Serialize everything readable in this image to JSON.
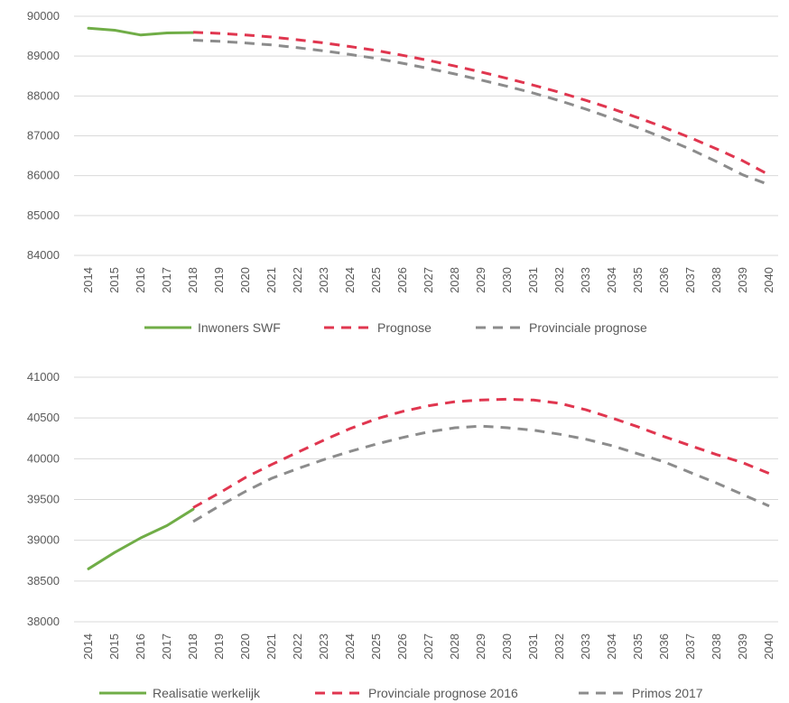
{
  "chart_data": [
    {
      "type": "line",
      "x": [
        "2014",
        "2015",
        "2016",
        "2017",
        "2018",
        "2019",
        "2020",
        "2021",
        "2022",
        "2023",
        "2024",
        "2025",
        "2026",
        "2027",
        "2028",
        "2029",
        "2030",
        "2031",
        "2032",
        "2033",
        "2034",
        "2035",
        "2036",
        "2037",
        "2038",
        "2039",
        "2040"
      ],
      "ylim": [
        84000,
        90000
      ],
      "yticks": [
        90000,
        89000,
        88000,
        87000,
        86000,
        85000,
        84000
      ],
      "grid": true,
      "legend_position": "bottom",
      "series": [
        {
          "name": "Inwoners SWF",
          "color": "#70ad47",
          "dash": "solid",
          "values": [
            89700,
            89650,
            89530,
            89580,
            89590,
            null,
            null,
            null,
            null,
            null,
            null,
            null,
            null,
            null,
            null,
            null,
            null,
            null,
            null,
            null,
            null,
            null,
            null,
            null,
            null,
            null,
            null
          ]
        },
        {
          "name": "Prognose",
          "color": "#e0364f",
          "dash": "dashed",
          "values": [
            null,
            null,
            null,
            null,
            89600,
            89570,
            89530,
            89480,
            89410,
            89330,
            89240,
            89140,
            89020,
            88890,
            88750,
            88600,
            88440,
            88270,
            88090,
            87890,
            87680,
            87450,
            87210,
            86950,
            86670,
            86370,
            86020
          ]
        },
        {
          "name": "Provinciale prognose",
          "color": "#8c8c8c",
          "dash": "dashed",
          "values": [
            null,
            null,
            null,
            null,
            89400,
            89370,
            89330,
            89280,
            89210,
            89130,
            89040,
            88940,
            88820,
            88690,
            88550,
            88400,
            88240,
            88070,
            87880,
            87670,
            87440,
            87200,
            86940,
            86660,
            86350,
            86020,
            85770
          ]
        }
      ]
    },
    {
      "type": "line",
      "x": [
        "2014",
        "2015",
        "2016",
        "2017",
        "2018",
        "2019",
        "2020",
        "2021",
        "2022",
        "2023",
        "2024",
        "2025",
        "2026",
        "2027",
        "2028",
        "2029",
        "2030",
        "2031",
        "2032",
        "2033",
        "2034",
        "2035",
        "2036",
        "2037",
        "2038",
        "2039",
        "2040"
      ],
      "ylim": [
        38000,
        41000
      ],
      "yticks": [
        41000,
        40500,
        40000,
        39500,
        39000,
        38500,
        38000
      ],
      "grid": true,
      "legend_position": "bottom",
      "series": [
        {
          "name": "Realisatie werkelijk",
          "color": "#70ad47",
          "dash": "solid",
          "values": [
            38650,
            38850,
            39030,
            39180,
            39380,
            null,
            null,
            null,
            null,
            null,
            null,
            null,
            null,
            null,
            null,
            null,
            null,
            null,
            null,
            null,
            null,
            null,
            null,
            null,
            null,
            null,
            null
          ]
        },
        {
          "name": "Provinciale prognose 2016",
          "color": "#e0364f",
          "dash": "dashed",
          "values": [
            null,
            null,
            null,
            null,
            39400,
            39580,
            39770,
            39930,
            40080,
            40230,
            40370,
            40490,
            40580,
            40650,
            40700,
            40720,
            40730,
            40720,
            40680,
            40600,
            40500,
            40390,
            40270,
            40160,
            40050,
            39950,
            39820
          ]
        },
        {
          "name": "Primos 2017",
          "color": "#8c8c8c",
          "dash": "dashed",
          "values": [
            null,
            null,
            null,
            null,
            39230,
            39420,
            39600,
            39760,
            39880,
            39990,
            40090,
            40180,
            40260,
            40330,
            40380,
            40400,
            40380,
            40350,
            40300,
            40240,
            40160,
            40060,
            39960,
            39830,
            39700,
            39560,
            39420
          ]
        }
      ]
    }
  ]
}
